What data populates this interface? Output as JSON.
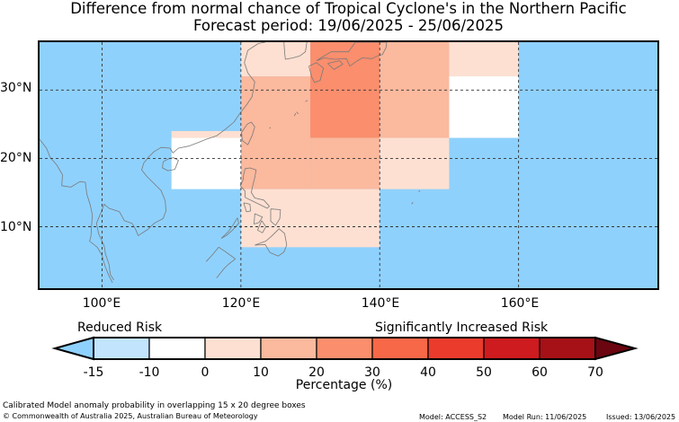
{
  "title": {
    "line1": "Difference from normal chance of Tropical Cyclone's in the Northern Pacific",
    "line2": "Forecast period: 19/06/2025 - 25/06/2025"
  },
  "map": {
    "lon_range": [
      91,
      180
    ],
    "lat_range": [
      1,
      37
    ],
    "background_color": "#8fd1fd",
    "gridlines": "dashed",
    "lat_labels": [
      "30°N",
      "20°N",
      "10°N"
    ],
    "lon_labels": [
      "100°E",
      "120°E",
      "140°E",
      "160°E"
    ],
    "anomaly_cells": [
      {
        "lon": [
          120,
          130
        ],
        "lat": [
          32,
          37
        ],
        "percent": 0
      },
      {
        "lon": [
          120,
          130
        ],
        "lat": [
          15.5,
          32
        ],
        "percent": 10
      },
      {
        "lon": [
          130,
          140
        ],
        "lat": [
          23,
          37
        ],
        "percent": 20
      },
      {
        "lon": [
          140,
          150
        ],
        "lat": [
          23,
          37
        ],
        "percent": 10
      },
      {
        "lon": [
          130,
          140
        ],
        "lat": [
          15.5,
          23
        ],
        "percent": 10
      },
      {
        "lon": [
          140,
          150
        ],
        "lat": [
          15.5,
          23
        ],
        "percent": 0
      },
      {
        "lon": [
          110,
          120
        ],
        "lat": [
          23,
          24
        ],
        "percent": 0
      },
      {
        "lon": [
          110,
          120
        ],
        "lat": [
          15.5,
          23
        ],
        "percent": -10
      },
      {
        "lon": [
          120,
          140
        ],
        "lat": [
          7,
          15.5
        ],
        "percent": 0
      },
      {
        "lon": [
          150,
          160
        ],
        "lat": [
          32,
          37
        ],
        "percent": 0
      },
      {
        "lon": [
          150,
          160
        ],
        "lat": [
          23,
          32
        ],
        "percent": -10
      }
    ]
  },
  "risk_labels": {
    "reduced": "Reduced Risk",
    "increased": "Significantly Increased Risk"
  },
  "colorbar": {
    "ticks": [
      "-15",
      "-10",
      "0",
      "10",
      "20",
      "30",
      "40",
      "50",
      "60",
      "70"
    ],
    "colors": [
      "#c2e4fd",
      "#ffffff",
      "#fde0d2",
      "#fbb99e",
      "#fa8e6d",
      "#f66848",
      "#ea3b2c",
      "#ce1b1f",
      "#a51117"
    ],
    "under_color": "#8fd1fd",
    "over_color": "#6b0510",
    "label": "Percentage (%)"
  },
  "footer": {
    "note": "Calibrated Model anomaly probability in overlapping 15 x 20 degree boxes",
    "copyright": "© Commonwealth of Australia 2025, Australian Bureau of Meteorology",
    "model": "Model: ACCESS_S2",
    "model_run": "Model Run: 11/06/2025",
    "issued": "Issued: 13/06/2025"
  }
}
